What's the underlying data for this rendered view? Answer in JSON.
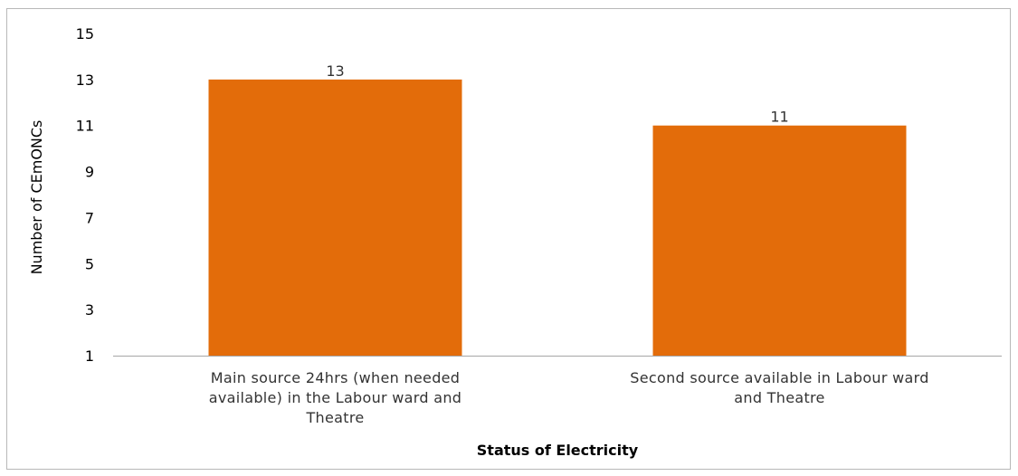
{
  "chart_data": {
    "type": "bar",
    "categories": [
      [
        "Main source 24hrs (when needed",
        "available) in the Labour ward and",
        "Theatre"
      ],
      [
        "Second source available in Labour ward",
        "and Theatre"
      ]
    ],
    "values": [
      13,
      11
    ],
    "data_labels": [
      "13",
      "11"
    ],
    "xlabel": "Status of Electricity",
    "ylabel": "Number of CEmONCs",
    "ylim": [
      1,
      15
    ],
    "yticks": [
      1,
      3,
      5,
      7,
      9,
      11,
      13,
      15
    ],
    "bar_color": "#E36C0A",
    "grid": false,
    "legend": "none"
  }
}
